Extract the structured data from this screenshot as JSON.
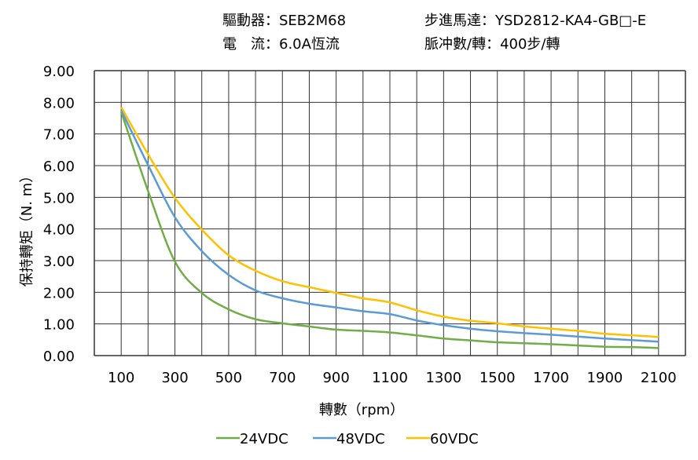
{
  "header": {
    "driver_label": "驅動器：",
    "driver_value": "SEB2M68",
    "motor_label": "步進馬達：",
    "motor_value": "YSD2812-KA4-GB□-E",
    "current_label": "電　流：",
    "current_value": "6.0A恆流",
    "pulse_label": "脈冲數/轉：",
    "pulse_value": "400步/轉"
  },
  "chart_data": {
    "type": "line",
    "xlabel": "轉數（rpm）",
    "ylabel": "保持轉矩（N. m）",
    "xlim": [
      0,
      2200
    ],
    "ylim": [
      0,
      9
    ],
    "grid": true,
    "legend_position": "bottom",
    "x_tick_labels": [
      "100",
      "300",
      "500",
      "700",
      "900",
      "1100",
      "1300",
      "1500",
      "1700",
      "1900",
      "2100"
    ],
    "y_tick_labels": [
      "0.00",
      "1.00",
      "2.00",
      "3.00",
      "4.00",
      "5.00",
      "6.00",
      "7.00",
      "8.00",
      "9.00"
    ],
    "x": [
      100,
      200,
      300,
      400,
      500,
      600,
      700,
      800,
      900,
      1000,
      1100,
      1200,
      1300,
      1400,
      1500,
      1600,
      1700,
      1800,
      1900,
      2000,
      2100
    ],
    "series": [
      {
        "name": "24VDC",
        "color": "#70ad47",
        "values": [
          7.7,
          5.2,
          2.97,
          1.98,
          1.46,
          1.15,
          1.02,
          0.92,
          0.82,
          0.78,
          0.73,
          0.64,
          0.54,
          0.48,
          0.42,
          0.39,
          0.36,
          0.32,
          0.28,
          0.27,
          0.24
        ]
      },
      {
        "name": "48VDC",
        "color": "#5b9bd5",
        "values": [
          7.75,
          6.02,
          4.37,
          3.3,
          2.55,
          2.06,
          1.81,
          1.64,
          1.52,
          1.4,
          1.31,
          1.11,
          0.96,
          0.85,
          0.77,
          0.71,
          0.66,
          0.6,
          0.54,
          0.49,
          0.44
        ]
      },
      {
        "name": "60VDC",
        "color": "#ffc000",
        "values": [
          7.85,
          6.36,
          4.98,
          3.98,
          3.17,
          2.68,
          2.35,
          2.16,
          1.98,
          1.81,
          1.68,
          1.43,
          1.23,
          1.1,
          1.02,
          0.92,
          0.85,
          0.78,
          0.69,
          0.64,
          0.59
        ]
      }
    ]
  }
}
